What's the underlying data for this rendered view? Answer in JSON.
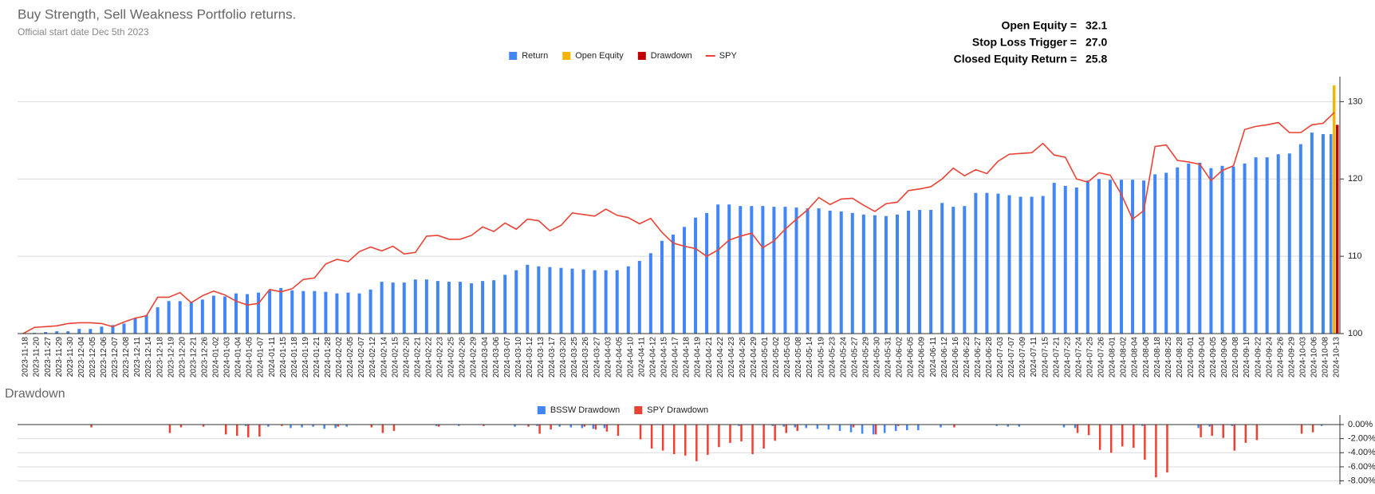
{
  "chart_data": [
    {
      "type": "bar",
      "title": "Buy Strength, Sell Weakness Portfolio returns.",
      "subtitle": "Official start date Dec 5th 2023",
      "annotations": [
        {
          "label": "Open Equity =",
          "text": "32.1"
        },
        {
          "label": "Stop Loss Trigger =",
          "text": "27.0"
        },
        {
          "label": "Closed Equity Return =",
          "text": "25.8"
        }
      ],
      "categories": [
        "2023-11-18",
        "2023-11-20",
        "2023-11-27",
        "2023-11-29",
        "2023-11-30",
        "2023-12-04",
        "2023-12-05",
        "2023-12-06",
        "2023-12-07",
        "2023-12-08",
        "2023-12-11",
        "2023-12-14",
        "2023-12-18",
        "2023-12-19",
        "2023-12-20",
        "2023-12-21",
        "2023-12-26",
        "2024-01-02",
        "2024-01-03",
        "2024-01-04",
        "2024-01-05",
        "2024-01-07",
        "2024-01-11",
        "2024-01-15",
        "2024-01-18",
        "2024-01-19",
        "2024-01-21",
        "2024-01-28",
        "2024-02-02",
        "2024-02-05",
        "2024-02-07",
        "2024-02-12",
        "2024-02-14",
        "2024-02-15",
        "2024-02-20",
        "2024-02-21",
        "2024-02-22",
        "2024-02-23",
        "2024-02-25",
        "2024-02-26",
        "2024-02-29",
        "2024-03-04",
        "2024-03-06",
        "2024-03-07",
        "2024-03-10",
        "2024-03-12",
        "2024-03-13",
        "2024-03-17",
        "2024-03-20",
        "2024-03-25",
        "2024-03-26",
        "2024-03-27",
        "2024-04-03",
        "2024-04-05",
        "2024-04-10",
        "2024-04-11",
        "2024-04-12",
        "2024-04-15",
        "2024-04-17",
        "2024-04-18",
        "2024-04-19",
        "2024-04-21",
        "2024-04-22",
        "2024-04-23",
        "2024-04-26",
        "2024-04-29",
        "2024-05-01",
        "2024-05-02",
        "2024-05-03",
        "2024-05-08",
        "2024-05-14",
        "2024-05-19",
        "2024-05-23",
        "2024-05-24",
        "2024-05-27",
        "2024-05-29",
        "2024-05-30",
        "2024-05-31",
        "2024-06-02",
        "2024-06-05",
        "2024-06-09",
        "2024-06-11",
        "2024-06-12",
        "2024-06-16",
        "2024-06-23",
        "2024-06-27",
        "2024-06-28",
        "2024-07-03",
        "2024-07-07",
        "2024-07-09",
        "2024-07-11",
        "2024-07-15",
        "2024-07-21",
        "2024-07-23",
        "2024-07-24",
        "2024-07-25",
        "2024-07-26",
        "2024-08-01",
        "2024-08-02",
        "2024-08-04",
        "2024-08-06",
        "2024-08-18",
        "2024-08-25",
        "2024-08-28",
        "2024-09-01",
        "2024-09-04",
        "2024-09-05",
        "2024-09-06",
        "2024-09-08",
        "2024-09-10",
        "2024-09-22",
        "2024-09-24",
        "2024-09-26",
        "2024-09-29",
        "2024-10-03",
        "2024-10-06",
        "2024-10-08",
        "2024-10-13"
      ],
      "series": [
        {
          "name": "Return",
          "type": "bar",
          "color": "#4285f4",
          "values": [
            100.0,
            100.1,
            100.2,
            100.3,
            100.3,
            100.6,
            100.6,
            100.9,
            101.1,
            101.3,
            102.0,
            102.4,
            103.4,
            104.2,
            104.2,
            104.1,
            104.4,
            104.9,
            104.8,
            105.2,
            105.1,
            105.3,
            105.6,
            105.9,
            105.6,
            105.5,
            105.5,
            105.4,
            105.2,
            105.3,
            105.2,
            105.7,
            106.7,
            106.6,
            106.6,
            107.0,
            107.0,
            106.8,
            106.7,
            106.7,
            106.5,
            106.8,
            106.9,
            107.6,
            108.2,
            108.9,
            108.7,
            108.6,
            108.5,
            108.4,
            108.3,
            108.2,
            108.2,
            108.2,
            108.7,
            109.4,
            110.4,
            112.0,
            112.8,
            113.8,
            115.0,
            115.6,
            116.7,
            116.7,
            116.5,
            116.5,
            116.5,
            116.4,
            116.4,
            116.3,
            116.2,
            116.2,
            115.9,
            115.8,
            115.6,
            115.4,
            115.3,
            115.2,
            115.4,
            115.9,
            116.0,
            116.0,
            116.9,
            116.4,
            116.5,
            118.2,
            118.2,
            118.1,
            117.9,
            117.7,
            117.7,
            117.8,
            119.5,
            119.1,
            118.9,
            119.8,
            120.0,
            119.9,
            119.9,
            119.9,
            119.8,
            120.6,
            120.8,
            121.5,
            122.0,
            122.1,
            121.4,
            121.7,
            121.6,
            122.0,
            122.8,
            122.8,
            123.2,
            123.3,
            124.5,
            126.0,
            125.8,
            125.8
          ]
        },
        {
          "name": "Open Equity",
          "type": "bar",
          "color": "#f4b400",
          "values": [
            null,
            null,
            null,
            null,
            null,
            null,
            null,
            null,
            null,
            null,
            null,
            null,
            null,
            null,
            null,
            null,
            null,
            null,
            null,
            null,
            null,
            null,
            null,
            null,
            null,
            null,
            null,
            null,
            null,
            null,
            null,
            null,
            null,
            null,
            null,
            null,
            null,
            null,
            null,
            null,
            null,
            null,
            null,
            null,
            null,
            null,
            null,
            null,
            null,
            null,
            null,
            null,
            null,
            null,
            null,
            null,
            null,
            null,
            null,
            null,
            null,
            null,
            null,
            null,
            null,
            null,
            null,
            null,
            null,
            null,
            null,
            null,
            null,
            null,
            null,
            null,
            null,
            null,
            null,
            null,
            null,
            null,
            null,
            null,
            null,
            null,
            null,
            null,
            null,
            null,
            null,
            null,
            null,
            null,
            null,
            null,
            null,
            null,
            null,
            null,
            null,
            null,
            null,
            null,
            null,
            null,
            null,
            null,
            null,
            null,
            null,
            null,
            null,
            null,
            null,
            null,
            null,
            132.1
          ]
        },
        {
          "name": "Drawdown",
          "type": "bar",
          "color": "#c00000",
          "values": [
            null,
            null,
            null,
            null,
            null,
            null,
            null,
            null,
            null,
            null,
            null,
            null,
            null,
            null,
            null,
            null,
            null,
            null,
            null,
            null,
            null,
            null,
            null,
            null,
            null,
            null,
            null,
            null,
            null,
            null,
            null,
            null,
            null,
            null,
            null,
            null,
            null,
            null,
            null,
            null,
            null,
            null,
            null,
            null,
            null,
            null,
            null,
            null,
            null,
            null,
            null,
            null,
            null,
            null,
            null,
            null,
            null,
            null,
            null,
            null,
            null,
            null,
            null,
            null,
            null,
            null,
            null,
            null,
            null,
            null,
            null,
            null,
            null,
            null,
            null,
            null,
            null,
            null,
            null,
            null,
            null,
            null,
            null,
            null,
            null,
            null,
            null,
            null,
            null,
            null,
            null,
            null,
            null,
            null,
            null,
            null,
            null,
            null,
            null,
            null,
            null,
            null,
            null,
            null,
            null,
            null,
            null,
            null,
            null,
            null,
            null,
            null,
            null,
            null,
            null,
            null,
            null,
            127.0
          ]
        },
        {
          "name": "SPY",
          "type": "line",
          "color": "#ea4335",
          "values": [
            100.0,
            100.8,
            100.9,
            101.0,
            101.3,
            101.4,
            101.4,
            101.3,
            100.9,
            101.5,
            102.0,
            102.3,
            104.7,
            104.7,
            105.3,
            104.0,
            104.9,
            105.5,
            105.0,
            104.2,
            103.7,
            103.9,
            105.7,
            105.4,
            105.8,
            107.0,
            107.2,
            109.0,
            109.6,
            109.3,
            110.6,
            111.2,
            110.7,
            111.3,
            110.3,
            110.5,
            112.6,
            112.7,
            112.2,
            112.2,
            112.7,
            113.8,
            113.2,
            114.3,
            113.5,
            114.8,
            114.6,
            113.3,
            114.0,
            115.6,
            115.4,
            115.2,
            116.1,
            115.3,
            115.0,
            114.2,
            114.9,
            113.1,
            111.7,
            111.3,
            111.0,
            110.0,
            110.8,
            112.1,
            112.6,
            113.0,
            111.1,
            112.0,
            113.5,
            114.8,
            116.0,
            117.6,
            116.7,
            117.4,
            117.5,
            116.6,
            115.8,
            116.8,
            117.0,
            118.5,
            118.7,
            119.0,
            120.0,
            121.4,
            120.4,
            121.2,
            120.7,
            122.3,
            123.2,
            123.3,
            123.4,
            124.6,
            123.1,
            122.8,
            120.0,
            119.6,
            120.8,
            120.5,
            118.0,
            114.8,
            115.9,
            124.2,
            124.4,
            122.4,
            122.2,
            121.9,
            119.8,
            121.1,
            121.7,
            126.4,
            126.8,
            127.0,
            127.3,
            126.0,
            126.0,
            127.0,
            127.2,
            128.6
          ]
        }
      ],
      "ylim": [
        100,
        132
      ],
      "yticks": [
        100,
        110,
        120,
        130
      ],
      "grid": true,
      "legend": "top"
    },
    {
      "type": "bar",
      "title": "Drawdown",
      "series": [
        {
          "name": "BSSW Drawdown",
          "color": "#4285f4",
          "values": [
            0,
            0,
            0,
            0,
            0,
            0,
            0,
            0,
            0,
            0,
            0,
            0,
            0,
            0,
            0,
            0,
            0,
            0,
            0,
            0,
            -0.2,
            0,
            -0.3,
            0,
            -0.5,
            -0.4,
            -0.3,
            -0.6,
            -0.5,
            -0.3,
            0,
            0,
            0,
            0,
            0,
            0,
            0,
            -0.2,
            0,
            -0.2,
            0,
            0,
            0,
            0,
            -0.3,
            0,
            -0.2,
            0,
            -0.3,
            -0.4,
            -0.5,
            -0.6,
            -0.5,
            0,
            0,
            0,
            0,
            0,
            0,
            0,
            0,
            0,
            0,
            0,
            -0.2,
            0,
            0,
            -0.2,
            -0.3,
            -0.4,
            -0.5,
            -0.6,
            -0.7,
            -0.9,
            -1.1,
            -1.3,
            -1.4,
            -1.2,
            -0.9,
            -0.8,
            -0.8,
            0,
            -0.4,
            0,
            0,
            0,
            0,
            -0.2,
            -0.3,
            -0.3,
            0,
            0,
            0,
            -0.4,
            -0.5,
            0,
            0,
            0,
            0,
            0,
            -0.2,
            0,
            0,
            0,
            0,
            -0.5,
            -0.3,
            0,
            -0.2,
            0,
            0,
            0,
            0,
            0,
            0,
            0,
            -0.2,
            0
          ]
        },
        {
          "name": "SPY Drawdown",
          "color": "#ea4335",
          "values": [
            0,
            0,
            0,
            0,
            0,
            0,
            -0.4,
            0,
            0,
            0,
            0,
            0,
            0,
            -1.2,
            -0.4,
            0,
            -0.3,
            0,
            -1.4,
            -1.6,
            -1.8,
            -1.7,
            0,
            -0.2,
            0,
            0,
            0,
            0,
            -0.3,
            0,
            0,
            -0.4,
            -1.2,
            -0.9,
            0,
            0,
            0,
            -0.3,
            0,
            0,
            0,
            -0.2,
            0,
            0,
            0,
            -0.3,
            -1.3,
            -0.7,
            0,
            0,
            -0.3,
            -0.7,
            -1.0,
            -1.6,
            0,
            -2.1,
            -3.4,
            -3.7,
            -4.2,
            -4.4,
            -5.2,
            -4.3,
            -3.2,
            -2.6,
            -2.4,
            -4.2,
            -3.4,
            -2.3,
            -1.2,
            -0.9,
            0,
            0,
            0,
            0,
            -0.4,
            0,
            -1.4,
            0,
            -0.2,
            0,
            0,
            0,
            0,
            -0.4,
            0,
            0,
            0,
            0,
            0,
            0,
            0,
            0,
            0,
            0,
            -1.2,
            -1.5,
            -3.6,
            -4.0,
            -3.1,
            -3.3,
            -5.0,
            -7.5,
            -6.8,
            0,
            0,
            -1.8,
            -1.6,
            -1.9,
            -3.7,
            -2.6,
            -2.2,
            0,
            0,
            0,
            -1.3,
            -1.1,
            0,
            0
          ]
        }
      ],
      "ylim": [
        -8.5,
        0
      ],
      "yticks": [
        {
          "value": 0,
          "label": "0.00%"
        },
        {
          "value": -2,
          "label": "-2.00%"
        },
        {
          "value": -4,
          "label": "-4.00%"
        },
        {
          "value": -6,
          "label": "-6.00%"
        },
        {
          "value": -8,
          "label": "-8.00%"
        }
      ],
      "grid": true,
      "legend": "top"
    }
  ]
}
